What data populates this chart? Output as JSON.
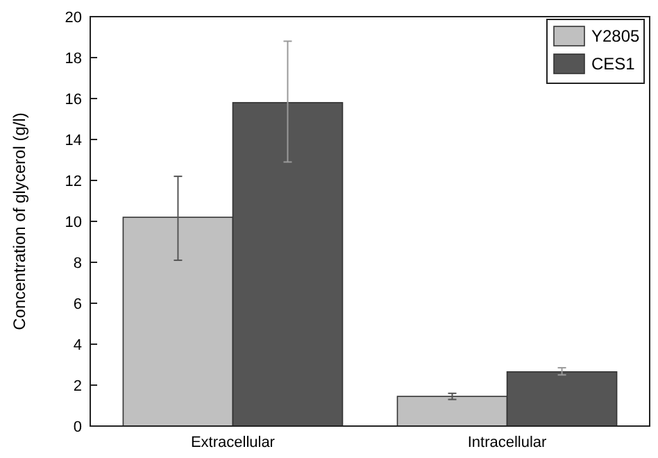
{
  "chart_data": {
    "type": "bar",
    "ylabel": "Concentration of glycerol (g/l)",
    "categories": [
      "Extracellular",
      "Intracellular"
    ],
    "series": [
      {
        "name": "Y2805",
        "color": "#c0c0c0",
        "values": [
          10.2,
          1.45
        ],
        "errors": [
          [
            8.1,
            12.2
          ],
          [
            1.3,
            1.6
          ]
        ]
      },
      {
        "name": "CES1",
        "color": "#555555",
        "values": [
          15.8,
          2.65
        ],
        "errors": [
          [
            12.9,
            18.8
          ],
          [
            2.5,
            2.85
          ]
        ]
      }
    ],
    "ylim": [
      0,
      20
    ],
    "yticks": [
      0,
      2,
      4,
      6,
      8,
      10,
      12,
      14,
      16,
      18,
      20
    ],
    "legend": "top right"
  }
}
